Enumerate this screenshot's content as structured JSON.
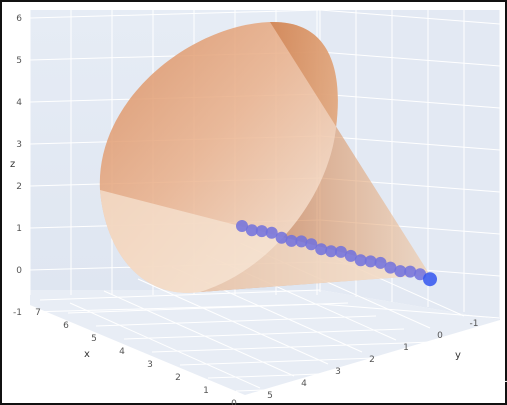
{
  "chart_data": {
    "type": "scatter",
    "view": "3d",
    "title": "",
    "axes": {
      "x": {
        "label": "x",
        "ticks": [
          "7",
          "6",
          "5",
          "4",
          "3",
          "2",
          "1",
          "0"
        ]
      },
      "y": {
        "label": "y",
        "ticks": [
          "5",
          "4",
          "3",
          "2",
          "1",
          "0",
          "-1"
        ]
      },
      "z": {
        "label": "z",
        "ticks": [
          "6",
          "5",
          "4",
          "3",
          "2",
          "1",
          "0",
          "-1"
        ],
        "range": [
          -1,
          6
        ]
      }
    },
    "surface": {
      "name": "cone",
      "colorscale": [
        "#f6e3cf",
        "#e9a878",
        "#c9662e"
      ],
      "apex": {
        "z": 0.1
      },
      "base_center": {
        "z": 2.6
      },
      "opacity": 0.85
    },
    "series": [
      {
        "marker_color": "#7070dd",
        "end_marker_color": "#3355ee",
        "points_z": [
          1.05,
          1.0,
          0.95,
          0.9,
          0.85,
          0.8,
          0.75,
          0.7,
          0.65,
          0.6,
          0.55,
          0.5,
          0.45,
          0.4,
          0.35,
          0.3,
          0.25,
          0.2,
          0.15,
          0.1
        ]
      }
    ],
    "grid": true,
    "legend": "none"
  }
}
